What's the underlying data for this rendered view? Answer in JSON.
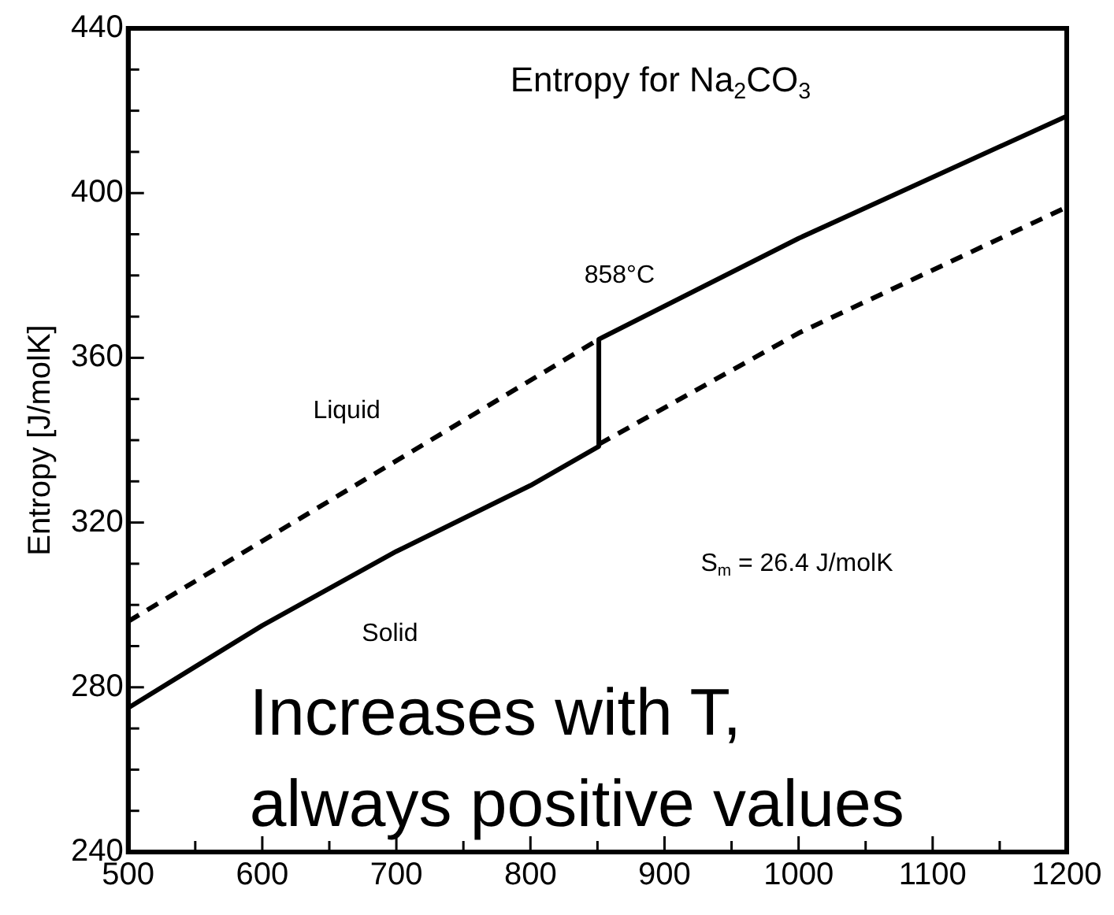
{
  "chart_data": {
    "type": "line",
    "title": "Entropy for Na$_{2}$CO$_{3}$",
    "ylabel": "Entropy [J/molK]",
    "series": [
      {
        "color": "#000000",
        "line_style": "solid",
        "x": [
          500,
          600,
          700,
          800,
          851,
          851,
          1000,
          1200
        ],
        "values": [
          275,
          295,
          313,
          329,
          338.5,
          364.5,
          389,
          418.7
        ]
      },
      {
        "color": "#000000",
        "line_style": "dashed",
        "x": [
          500,
          700,
          851
        ],
        "values": [
          296,
          335,
          364.5
        ]
      },
      {
        "color": "#000000",
        "line_style": "dashed",
        "x": [
          851,
          1000,
          1200
        ],
        "values": [
          339,
          366,
          396.6
        ]
      }
    ],
    "xlim": [
      500,
      1200
    ],
    "ylim": [
      240,
      440
    ],
    "xticks": [
      500,
      {
        "value": 550,
        "label": null
      },
      600,
      {
        "value": 650,
        "label": null
      },
      700,
      {
        "value": 750,
        "label": null
      },
      800,
      {
        "value": 850,
        "label": null
      },
      900,
      {
        "value": 950,
        "label": null
      },
      1000,
      {
        "value": 1050,
        "label": null
      },
      1100,
      {
        "value": 1150,
        "label": null
      },
      1200
    ],
    "yticks": [
      240,
      {
        "value": 250,
        "label": null
      },
      {
        "value": 260,
        "label": null
      },
      {
        "value": 270,
        "label": null
      },
      280,
      {
        "value": 290,
        "label": null
      },
      {
        "value": 300,
        "label": null
      },
      {
        "value": 310,
        "label": null
      },
      320,
      {
        "value": 330,
        "label": null
      },
      {
        "value": 340,
        "label": null
      },
      {
        "value": 350,
        "label": null
      },
      360,
      {
        "value": 370,
        "label": null
      },
      {
        "value": 380,
        "label": null
      },
      {
        "value": 390,
        "label": null
      },
      400,
      {
        "value": 410,
        "label": null
      },
      {
        "value": 420,
        "label": null
      },
      {
        "value": 430,
        "label": null
      },
      440
    ],
    "annotations": [
      "Liquid",
      "Solid",
      "858°C",
      "S$_{m}$ = 26.4 J/molK",
      "Increases with T, always positive values"
    ],
    "grid": false,
    "legend": false,
    "marker": "none"
  }
}
